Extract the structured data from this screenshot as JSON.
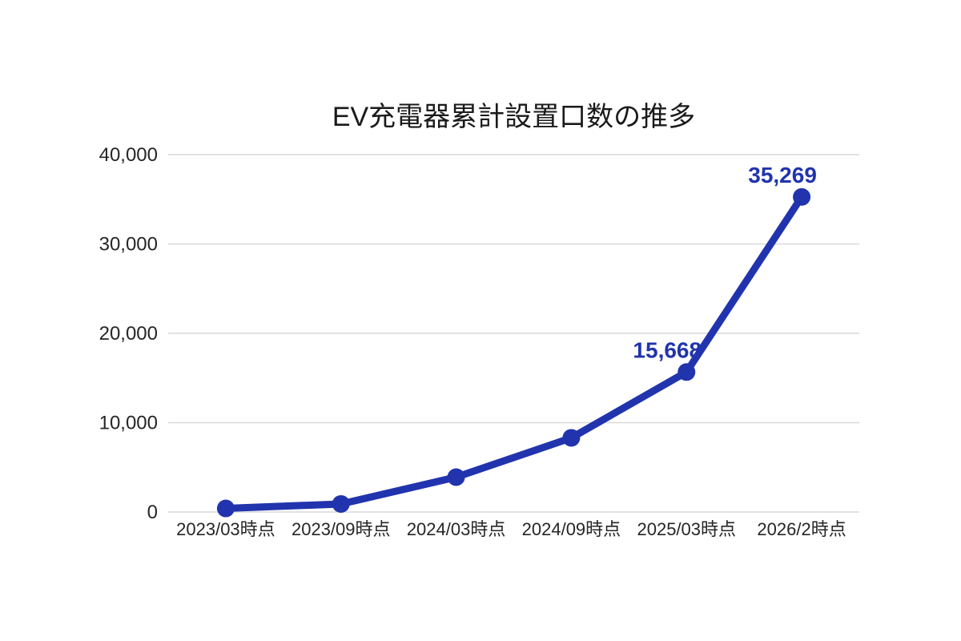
{
  "chart_data": {
    "type": "line",
    "title": "EV充電器累計設置口数の推多",
    "categories": [
      "2023/03時点",
      "2023/09時点",
      "2024/03時点",
      "2024/09時点",
      "2025/03時点",
      "2026/2時点"
    ],
    "series": [
      {
        "values": [
          400,
          900,
          3900,
          8300,
          15668,
          35269
        ],
        "color": "#2134ae"
      }
    ],
    "point_labels": [
      "",
      "",
      "",
      "",
      "15,668",
      "35,269"
    ],
    "ylim": [
      0,
      40000
    ],
    "ytick_interval": 10000,
    "ytick_labels": [
      "0",
      "10,000",
      "20,000",
      "30,000",
      "40,000"
    ],
    "xlabel": "",
    "ylabel": "",
    "grid": "horizontal",
    "legend": "none",
    "colors": {
      "accent": "#2134ae",
      "gridline": "#d9d9d9",
      "title_text": "#1a1a1a",
      "tick_text": "#262626",
      "background": "#ffffff"
    }
  }
}
